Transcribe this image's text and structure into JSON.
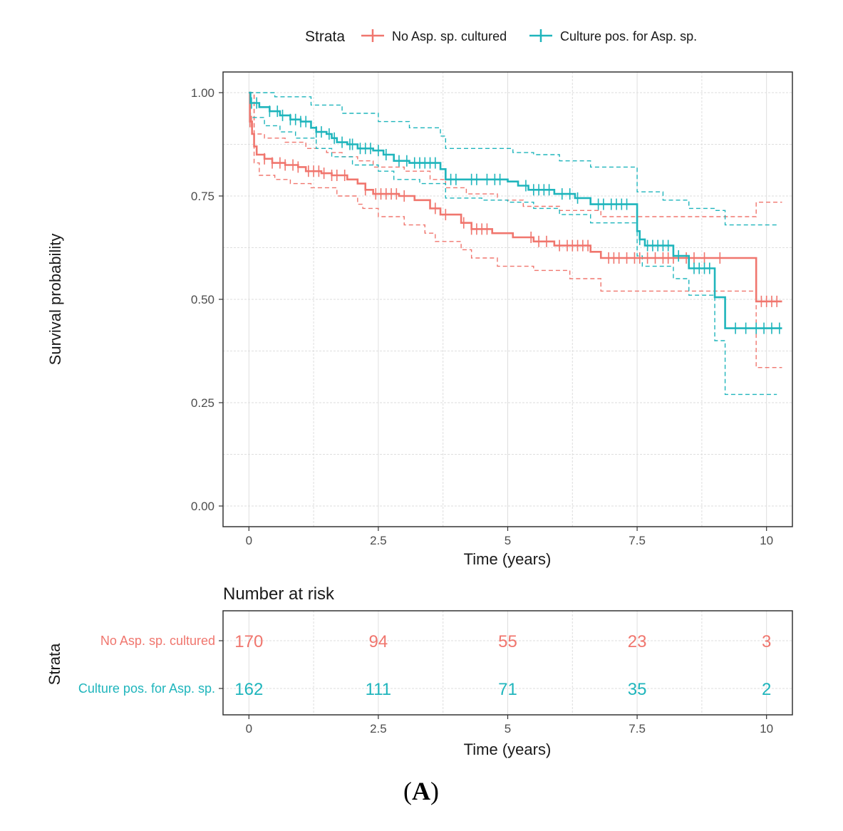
{
  "panel_label": {
    "open": "(",
    "letter": "A",
    "close": ")"
  },
  "colors": {
    "no_asp": "#F0766E",
    "culture_pos": "#1FB5BC",
    "grid": "#dedede",
    "frame": "#333333"
  },
  "chart_data": {
    "type": "line",
    "subtype": "kaplan-meier",
    "xlabel": "Time (years)",
    "ylabel": "Survival probability",
    "xlim": [
      -0.5,
      10.5
    ],
    "ylim": [
      -0.05,
      1.05
    ],
    "x_ticks": [
      0,
      2.5,
      5,
      7.5,
      10
    ],
    "x_tick_labels": [
      "0",
      "2.5",
      "5",
      "7.5",
      "10"
    ],
    "y_ticks": [
      0,
      0.25,
      0.5,
      0.75,
      1.0
    ],
    "y_tick_labels": [
      "0.00",
      "0.25",
      "0.50",
      "0.75",
      "1.00"
    ],
    "grid": true,
    "legend": {
      "title": "Strata",
      "placement": "top",
      "entries": [
        "No Asp. sp. cultured",
        "Culture pos. for Asp. sp."
      ]
    },
    "series": [
      {
        "name": "No Asp. sp. cultured",
        "color": "#F0766E",
        "steps": [
          [
            0,
            1.0
          ],
          [
            0.02,
            0.93
          ],
          [
            0.06,
            0.9
          ],
          [
            0.1,
            0.87
          ],
          [
            0.15,
            0.85
          ],
          [
            0.3,
            0.84
          ],
          [
            0.45,
            0.83
          ],
          [
            0.7,
            0.825
          ],
          [
            0.95,
            0.82
          ],
          [
            1.1,
            0.81
          ],
          [
            1.4,
            0.805
          ],
          [
            1.6,
            0.8
          ],
          [
            1.9,
            0.79
          ],
          [
            2.1,
            0.78
          ],
          [
            2.25,
            0.765
          ],
          [
            2.4,
            0.755
          ],
          [
            2.9,
            0.75
          ],
          [
            3.2,
            0.74
          ],
          [
            3.5,
            0.72
          ],
          [
            3.7,
            0.705
          ],
          [
            4.1,
            0.685
          ],
          [
            4.3,
            0.67
          ],
          [
            4.7,
            0.66
          ],
          [
            5.1,
            0.65
          ],
          [
            5.5,
            0.64
          ],
          [
            5.9,
            0.63
          ],
          [
            6.6,
            0.615
          ],
          [
            6.8,
            0.6
          ],
          [
            9.8,
            0.6
          ],
          [
            9.8,
            0.495
          ],
          [
            10.3,
            0.495
          ]
        ],
        "lower": [
          [
            0,
            1.0
          ],
          [
            0.1,
            0.83
          ],
          [
            0.2,
            0.8
          ],
          [
            0.5,
            0.79
          ],
          [
            0.8,
            0.78
          ],
          [
            1.2,
            0.77
          ],
          [
            1.7,
            0.75
          ],
          [
            2.1,
            0.73
          ],
          [
            2.2,
            0.72
          ],
          [
            2.5,
            0.7
          ],
          [
            3.0,
            0.68
          ],
          [
            3.4,
            0.66
          ],
          [
            3.6,
            0.64
          ],
          [
            4.1,
            0.62
          ],
          [
            4.3,
            0.6
          ],
          [
            4.8,
            0.58
          ],
          [
            5.5,
            0.57
          ],
          [
            6.2,
            0.55
          ],
          [
            6.8,
            0.52
          ],
          [
            8.9,
            0.52
          ],
          [
            9.8,
            0.52
          ],
          [
            9.8,
            0.335
          ],
          [
            10.3,
            0.335
          ]
        ],
        "upper": [
          [
            0,
            1.0
          ],
          [
            0.1,
            0.9
          ],
          [
            0.3,
            0.89
          ],
          [
            0.7,
            0.88
          ],
          [
            1.1,
            0.865
          ],
          [
            1.5,
            0.855
          ],
          [
            1.8,
            0.845
          ],
          [
            2.1,
            0.835
          ],
          [
            2.4,
            0.82
          ],
          [
            3.0,
            0.81
          ],
          [
            3.5,
            0.79
          ],
          [
            3.8,
            0.77
          ],
          [
            4.2,
            0.755
          ],
          [
            4.8,
            0.74
          ],
          [
            5.3,
            0.725
          ],
          [
            6.0,
            0.715
          ],
          [
            6.8,
            0.7
          ],
          [
            9.5,
            0.7
          ],
          [
            9.8,
            0.7
          ],
          [
            9.8,
            0.735
          ],
          [
            10.3,
            0.735
          ]
        ],
        "censor_x": [
          0.02,
          0.05,
          0.3,
          0.45,
          0.6,
          0.7,
          0.85,
          0.95,
          1.15,
          1.25,
          1.35,
          1.45,
          1.6,
          1.7,
          1.85,
          2.25,
          2.45,
          2.55,
          2.65,
          2.75,
          2.85,
          3.0,
          3.6,
          3.8,
          4.15,
          4.3,
          4.4,
          4.5,
          4.6,
          5.45,
          5.6,
          5.75,
          6.0,
          6.15,
          6.25,
          6.35,
          6.45,
          6.55,
          6.95,
          7.05,
          7.15,
          7.3,
          7.45,
          7.55,
          7.7,
          7.85,
          8.0,
          8.1,
          8.2,
          8.45,
          8.6,
          8.8,
          9.1,
          9.9,
          10.0,
          10.1,
          10.2
        ]
      },
      {
        "name": "Culture pos. for Asp. sp.",
        "color": "#1FB5BC",
        "steps": [
          [
            0,
            1.0
          ],
          [
            0.03,
            0.975
          ],
          [
            0.2,
            0.965
          ],
          [
            0.4,
            0.955
          ],
          [
            0.6,
            0.945
          ],
          [
            0.8,
            0.935
          ],
          [
            1.0,
            0.93
          ],
          [
            1.2,
            0.915
          ],
          [
            1.3,
            0.905
          ],
          [
            1.5,
            0.9
          ],
          [
            1.6,
            0.89
          ],
          [
            1.7,
            0.88
          ],
          [
            1.9,
            0.875
          ],
          [
            2.1,
            0.865
          ],
          [
            2.4,
            0.86
          ],
          [
            2.6,
            0.85
          ],
          [
            2.8,
            0.835
          ],
          [
            3.1,
            0.83
          ],
          [
            3.7,
            0.815
          ],
          [
            3.8,
            0.79
          ],
          [
            4.6,
            0.79
          ],
          [
            5.0,
            0.785
          ],
          [
            5.2,
            0.775
          ],
          [
            5.4,
            0.765
          ],
          [
            5.9,
            0.755
          ],
          [
            6.3,
            0.745
          ],
          [
            6.6,
            0.73
          ],
          [
            7.4,
            0.73
          ],
          [
            7.5,
            0.665
          ],
          [
            7.55,
            0.645
          ],
          [
            7.65,
            0.63
          ],
          [
            8.2,
            0.605
          ],
          [
            8.5,
            0.575
          ],
          [
            9.0,
            0.575
          ],
          [
            9.0,
            0.505
          ],
          [
            9.2,
            0.505
          ],
          [
            9.2,
            0.43
          ],
          [
            10.3,
            0.43
          ]
        ],
        "lower": [
          [
            0,
            1.0
          ],
          [
            0.03,
            0.94
          ],
          [
            0.3,
            0.92
          ],
          [
            0.6,
            0.905
          ],
          [
            0.9,
            0.89
          ],
          [
            1.3,
            0.865
          ],
          [
            1.6,
            0.845
          ],
          [
            2.0,
            0.825
          ],
          [
            2.5,
            0.81
          ],
          [
            2.8,
            0.79
          ],
          [
            3.3,
            0.78
          ],
          [
            3.8,
            0.745
          ],
          [
            4.5,
            0.74
          ],
          [
            5.0,
            0.735
          ],
          [
            5.5,
            0.72
          ],
          [
            6.0,
            0.705
          ],
          [
            6.6,
            0.685
          ],
          [
            7.4,
            0.685
          ],
          [
            7.5,
            0.605
          ],
          [
            7.6,
            0.58
          ],
          [
            8.2,
            0.55
          ],
          [
            8.5,
            0.51
          ],
          [
            9.0,
            0.5
          ],
          [
            9.0,
            0.4
          ],
          [
            9.2,
            0.4
          ],
          [
            9.2,
            0.27
          ],
          [
            10.2,
            0.27
          ]
        ],
        "upper": [
          [
            0,
            1.0
          ],
          [
            0.5,
            0.99
          ],
          [
            1.2,
            0.97
          ],
          [
            1.8,
            0.95
          ],
          [
            2.5,
            0.93
          ],
          [
            3.1,
            0.915
          ],
          [
            3.7,
            0.895
          ],
          [
            3.8,
            0.865
          ],
          [
            4.5,
            0.865
          ],
          [
            5.1,
            0.855
          ],
          [
            5.5,
            0.85
          ],
          [
            6.0,
            0.835
          ],
          [
            6.6,
            0.82
          ],
          [
            7.4,
            0.82
          ],
          [
            7.5,
            0.76
          ],
          [
            8.0,
            0.74
          ],
          [
            8.5,
            0.72
          ],
          [
            9.0,
            0.715
          ],
          [
            9.2,
            0.68
          ],
          [
            10.2,
            0.68
          ]
        ],
        "censor_x": [
          0.05,
          0.15,
          0.4,
          0.55,
          0.65,
          0.8,
          0.9,
          1.0,
          1.1,
          1.3,
          1.4,
          1.55,
          1.65,
          1.8,
          1.95,
          2.0,
          2.15,
          2.25,
          2.35,
          2.5,
          2.65,
          2.9,
          3.05,
          3.2,
          3.3,
          3.4,
          3.5,
          3.6,
          3.9,
          4.0,
          4.3,
          4.4,
          4.6,
          4.75,
          4.85,
          5.35,
          5.5,
          5.6,
          5.7,
          5.8,
          6.05,
          6.2,
          6.35,
          6.75,
          6.85,
          7.0,
          7.1,
          7.2,
          7.3,
          7.55,
          7.7,
          7.8,
          7.9,
          8.0,
          8.1,
          8.3,
          8.6,
          8.7,
          8.8,
          8.9,
          9.4,
          9.6,
          9.8,
          9.95,
          10.1,
          10.25
        ]
      }
    ],
    "risk_table": {
      "title": "Number at risk",
      "ylabel": "Strata",
      "xlabel": "Time (years)",
      "times": [
        0,
        2.5,
        5,
        7.5,
        10
      ],
      "rows": [
        {
          "label": "No Asp. sp. cultured",
          "counts": [
            170,
            94,
            55,
            23,
            3
          ]
        },
        {
          "label": "Culture pos. for Asp. sp.",
          "counts": [
            162,
            111,
            71,
            35,
            2
          ]
        }
      ]
    }
  }
}
